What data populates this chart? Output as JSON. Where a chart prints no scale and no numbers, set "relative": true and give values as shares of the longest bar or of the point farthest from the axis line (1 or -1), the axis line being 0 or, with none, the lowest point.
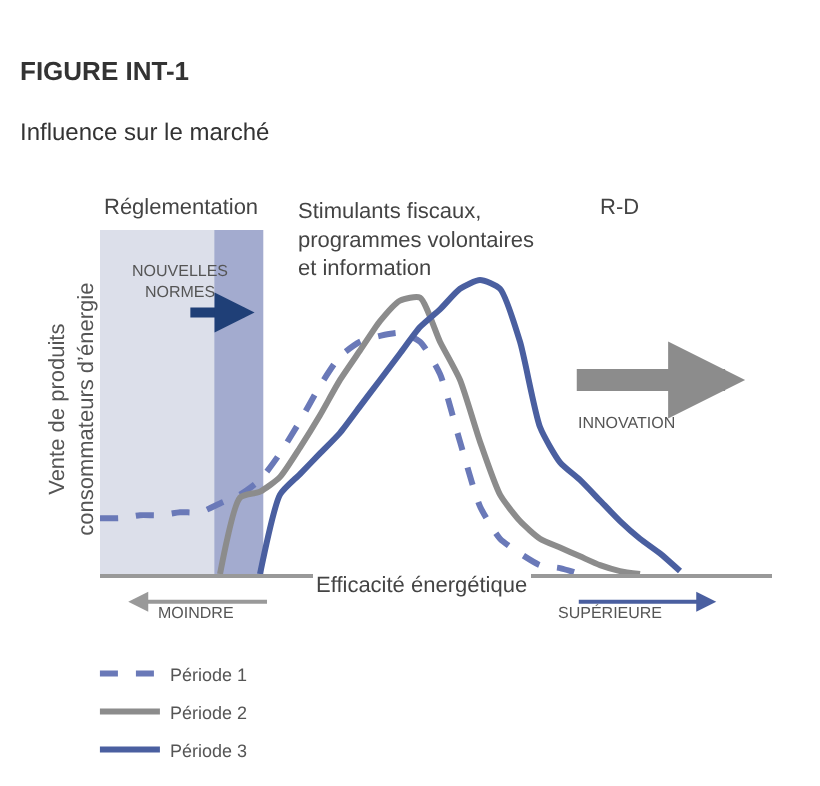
{
  "chart_data": {
    "type": "line",
    "relative": true,
    "title": "FIGURE INT-1",
    "subtitle": "Influence sur le marché",
    "xlabel": "Efficacité énergétique",
    "ylabel": "Vente de produits\nconsommateurs d’énergie",
    "annotations": [
      "Réglementation",
      "Stimulants fiscaux,\nprogrammes volontaires\net information",
      "R-D",
      "INNOVATION",
      "MOINDRE",
      "SUPÉRIEURE",
      "NOUVELLES\nNORMES"
    ],
    "categories": [
      null,
      null,
      null,
      null,
      null,
      null,
      null,
      null,
      null,
      null,
      null,
      null,
      null,
      null,
      null,
      null,
      null,
      null,
      null,
      null,
      null,
      null,
      null,
      null,
      null,
      null,
      null,
      null,
      null,
      null
    ],
    "series": [
      {
        "name": "Période 1",
        "color": "#6a79b8",
        "line_style": "dashed",
        "values": [
          0.19,
          0.19,
          0.2,
          0.2,
          0.21,
          0.21,
          0.24,
          0.27,
          0.32,
          0.41,
          0.52,
          0.64,
          0.74,
          0.79,
          0.81,
          0.82,
          0.79,
          0.68,
          0.45,
          0.23,
          0.12,
          0.07,
          0.03,
          0.02,
          0,
          null,
          null,
          null,
          null,
          null
        ]
      },
      {
        "name": "Période 2",
        "color": "#8c8c8c",
        "line_style": "solid",
        "values": [
          null,
          null,
          null,
          null,
          null,
          null,
          0,
          0.26,
          0.28,
          0.33,
          0.43,
          0.54,
          0.66,
          0.76,
          0.86,
          0.93,
          0.94,
          0.79,
          0.66,
          0.45,
          0.27,
          0.18,
          0.12,
          0.09,
          0.06,
          0.03,
          0.01,
          0,
          null,
          null
        ]
      },
      {
        "name": "Période 3",
        "color": "#4a5fa0",
        "line_style": "solid",
        "values": [
          null,
          null,
          null,
          null,
          null,
          null,
          null,
          null,
          0,
          0.27,
          0.34,
          0.41,
          0.48,
          0.57,
          0.66,
          0.75,
          0.84,
          0.9,
          0.97,
          1,
          0.97,
          0.79,
          0.5,
          0.38,
          0.32,
          0.25,
          0.18,
          0.12,
          0.07,
          0.01
        ]
      }
    ],
    "legend": "bottom left",
    "marker": "none"
  }
}
